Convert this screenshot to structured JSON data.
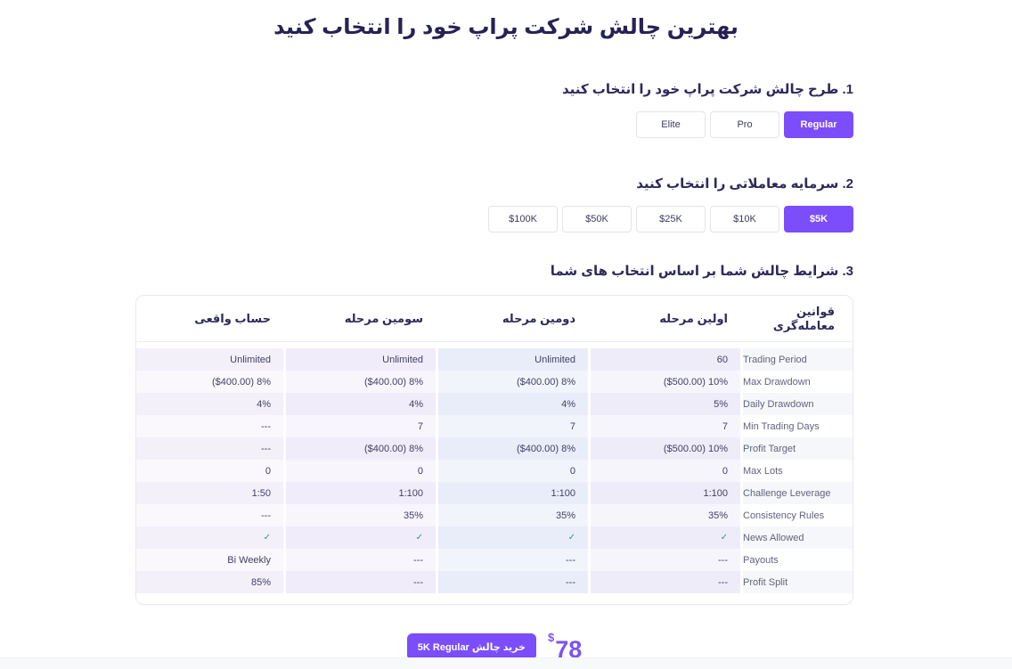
{
  "page": {
    "title": "بهترین چالش شرکت پراپ خود را انتخاب کنید",
    "accent_color": "#7c4dfb"
  },
  "steps": {
    "step1": {
      "label": "1. طرح چالش شرکت پراپ خود را انتخاب کنید",
      "options": [
        {
          "label": "Elite",
          "selected": false
        },
        {
          "label": "Pro",
          "selected": false
        },
        {
          "label": "Regular",
          "selected": true
        }
      ]
    },
    "step2": {
      "label": "2. سرمایه معاملاتی را انتخاب کنید",
      "options": [
        {
          "label": "$100K",
          "selected": false
        },
        {
          "label": "$50K",
          "selected": false
        },
        {
          "label": "$25K",
          "selected": false
        },
        {
          "label": "$10K",
          "selected": false
        },
        {
          "label": "$5K",
          "selected": true
        }
      ]
    },
    "step3": {
      "label": "3. شرایط چالش شما بر اساس انتخاب های شما"
    }
  },
  "table": {
    "headers": {
      "rules": "قوانین معامله‌گری",
      "stage1": "اولین مرحله",
      "stage2": "دومین مرحله",
      "stage3": "سومین مرحله",
      "real": "حساب واقعی"
    },
    "check_color": "#17a673",
    "rows": [
      {
        "rule": "Trading Period",
        "stage1": "60",
        "stage2": "Unlimited",
        "stage3": "Unlimited",
        "real": "Unlimited"
      },
      {
        "rule": "Max Drawdown",
        "stage1": "($500.00) 10%",
        "stage2": "($400.00) 8%",
        "stage3": "($400.00) 8%",
        "real": "($400.00) 8%"
      },
      {
        "rule": "Daily Drawdown",
        "stage1": "5%",
        "stage2": "4%",
        "stage3": "4%",
        "real": "4%"
      },
      {
        "rule": "Min Trading Days",
        "stage1": "7",
        "stage2": "7",
        "stage3": "7",
        "real": "---"
      },
      {
        "rule": "Profit Target",
        "stage1": "($500.00) 10%",
        "stage2": "($400.00) 8%",
        "stage3": "($400.00) 8%",
        "real": "---"
      },
      {
        "rule": "Max Lots",
        "stage1": "0",
        "stage2": "0",
        "stage3": "0",
        "real": "0"
      },
      {
        "rule": "Challenge Leverage",
        "stage1": "1:100",
        "stage2": "1:100",
        "stage3": "1:100",
        "real": "1:50"
      },
      {
        "rule": "Consistency Rules",
        "stage1": "35%",
        "stage2": "35%",
        "stage3": "35%",
        "real": "---"
      },
      {
        "rule": "News Allowed",
        "stage1": "✓",
        "stage2": "✓",
        "stage3": "✓",
        "real": "✓"
      },
      {
        "rule": "Payouts",
        "stage1": "---",
        "stage2": "---",
        "stage3": "---",
        "real": "Bi Weekly"
      },
      {
        "rule": "Profit Split",
        "stage1": "---",
        "stage2": "---",
        "stage3": "---",
        "real": "85%"
      }
    ]
  },
  "checkout": {
    "buy_button_label": "خرید چالش 5K Regular",
    "currency_symbol": "$",
    "price": "78"
  }
}
